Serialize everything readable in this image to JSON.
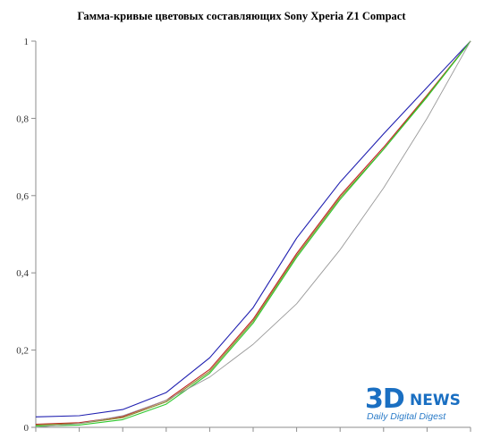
{
  "chart_data": {
    "type": "line",
    "title": "Гамма-кривые цветовых составляющих Sony Xperia Z1 Compact",
    "xlabel": "",
    "ylabel": "",
    "x": [
      0,
      0.1,
      0.2,
      0.3,
      0.4,
      0.5,
      0.6,
      0.7,
      0.8,
      0.9,
      1.0
    ],
    "ylim": [
      0,
      1
    ],
    "yticks": [
      "0",
      "0,2",
      "0,4",
      "0,6",
      "0,8",
      "1"
    ],
    "grid": false,
    "legend": "none",
    "series": [
      {
        "color": "#1f1fb0",
        "values": [
          0.027,
          0.03,
          0.046,
          0.09,
          0.18,
          0.31,
          0.49,
          0.635,
          0.76,
          0.88,
          1.0
        ]
      },
      {
        "color": "#c02020",
        "values": [
          0.008,
          0.012,
          0.028,
          0.07,
          0.15,
          0.28,
          0.45,
          0.6,
          0.725,
          0.86,
          1.0
        ]
      },
      {
        "color": "#8a8a2a",
        "values": [
          0.006,
          0.01,
          0.025,
          0.066,
          0.145,
          0.275,
          0.445,
          0.595,
          0.72,
          0.858,
          1.0
        ]
      },
      {
        "color": "#2ec82e",
        "values": [
          0.003,
          0.006,
          0.02,
          0.06,
          0.14,
          0.27,
          0.44,
          0.59,
          0.72,
          0.855,
          1.0
        ]
      },
      {
        "color": "#9a9a9a",
        "values": [
          0.0,
          0.01,
          0.03,
          0.07,
          0.13,
          0.215,
          0.32,
          0.46,
          0.62,
          0.8,
          1.0
        ]
      }
    ]
  },
  "watermark": {
    "big": "3D",
    "news": "NEWS",
    "sub": "Daily Digital Digest"
  }
}
